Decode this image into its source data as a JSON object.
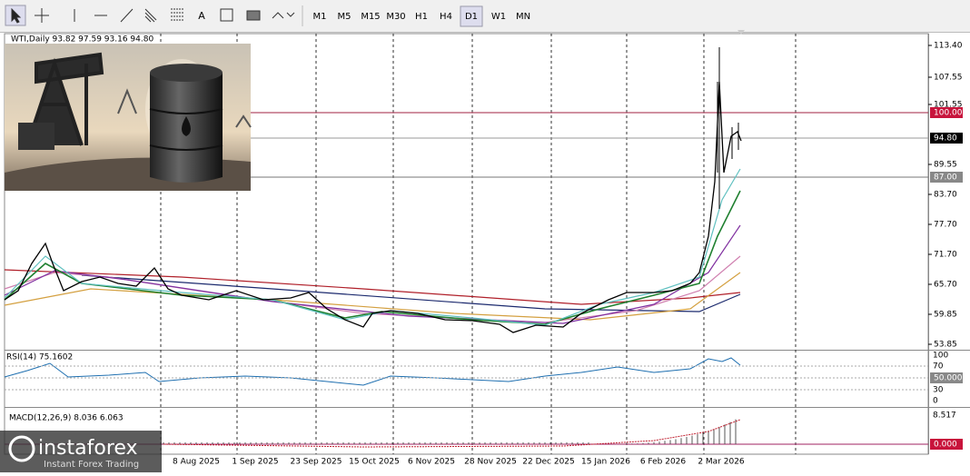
{
  "toolbar": {
    "text_tool": "A",
    "timeframes": [
      "M1",
      "M5",
      "M15",
      "M30",
      "H1",
      "H4",
      "D1",
      "W1",
      "MN"
    ],
    "selected_timeframe": "D1"
  },
  "main_pane": {
    "header": "WTI,Daily  93.82 97.59 93.16 94.80",
    "price_labels": [
      "113.40",
      "107.55",
      "101.55",
      "89.55",
      "83.70",
      "77.70",
      "71.70",
      "65.70",
      "59.85",
      "53.85"
    ],
    "level_labels": {
      "red": "100.00",
      "current": "94.80",
      "grey": "87.00"
    }
  },
  "rsi_pane": {
    "header": "RSI(14) 75.1602",
    "levels": [
      "100",
      "70",
      "30",
      "0"
    ],
    "highlight": "50.0000"
  },
  "macd_pane": {
    "header": "MACD(12,26,9) 8.036 6.063",
    "top": "8.517",
    "highlight": "0.000"
  },
  "date_axis": [
    "8 Aug 2025",
    "1 Sep 2025",
    "23 Sep 2025",
    "15 Oct 2025",
    "6 Nov 2025",
    "28 Nov 2025",
    "22 Dec 2025",
    "15 Jan 2026",
    "6 Feb 2026",
    "2 Mar 2026"
  ],
  "logo": {
    "name": "instaforex",
    "tagline": "Instant Forex Trading"
  }
}
